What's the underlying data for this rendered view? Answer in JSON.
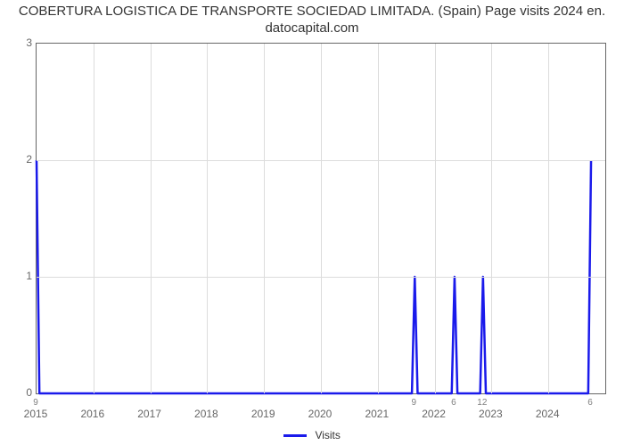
{
  "chart": {
    "type": "line",
    "title_line1": "COBERTURA LOGISTICA DE TRANSPORTE SOCIEDAD LIMITADA. (Spain) Page visits 2024 en.",
    "title_line2": "datocapital.com",
    "title_fontsize": 15,
    "title_color": "#333333",
    "background_color": "#ffffff",
    "plot_border_color": "#666666",
    "grid_color": "#dcdcdc",
    "line_color": "#1a1aeb",
    "line_width": 2.5,
    "x_year_start": 2015,
    "x_year_end": 2025,
    "x_year_labels": [
      "2015",
      "2016",
      "2017",
      "2018",
      "2019",
      "2020",
      "2021",
      "2022",
      "2023",
      "2024"
    ],
    "ylim": [
      0,
      3
    ],
    "yticks": [
      0,
      1,
      2,
      3
    ],
    "minor_ticks": [
      {
        "year_frac": 2015.0,
        "label": "9"
      },
      {
        "year_frac": 2021.65,
        "label": "9"
      },
      {
        "year_frac": 2022.35,
        "label": "6"
      },
      {
        "year_frac": 2022.85,
        "label": "12"
      },
      {
        "year_frac": 2024.75,
        "label": "6"
      }
    ],
    "legend": {
      "label": "Visits",
      "color": "#1a1aeb"
    },
    "series": [
      {
        "x": 2015.0,
        "y": 2.0
      },
      {
        "x": 2015.05,
        "y": 0.0
      },
      {
        "x": 2021.6,
        "y": 0.0
      },
      {
        "x": 2021.65,
        "y": 1.0
      },
      {
        "x": 2021.7,
        "y": 0.0
      },
      {
        "x": 2022.3,
        "y": 0.0
      },
      {
        "x": 2022.35,
        "y": 1.0
      },
      {
        "x": 2022.4,
        "y": 0.0
      },
      {
        "x": 2022.8,
        "y": 0.0
      },
      {
        "x": 2022.85,
        "y": 1.0
      },
      {
        "x": 2022.9,
        "y": 0.0
      },
      {
        "x": 2024.7,
        "y": 0.0
      },
      {
        "x": 2024.75,
        "y": 2.0
      }
    ],
    "axis_label_fontsize": 12,
    "axis_label_color": "#666666"
  }
}
